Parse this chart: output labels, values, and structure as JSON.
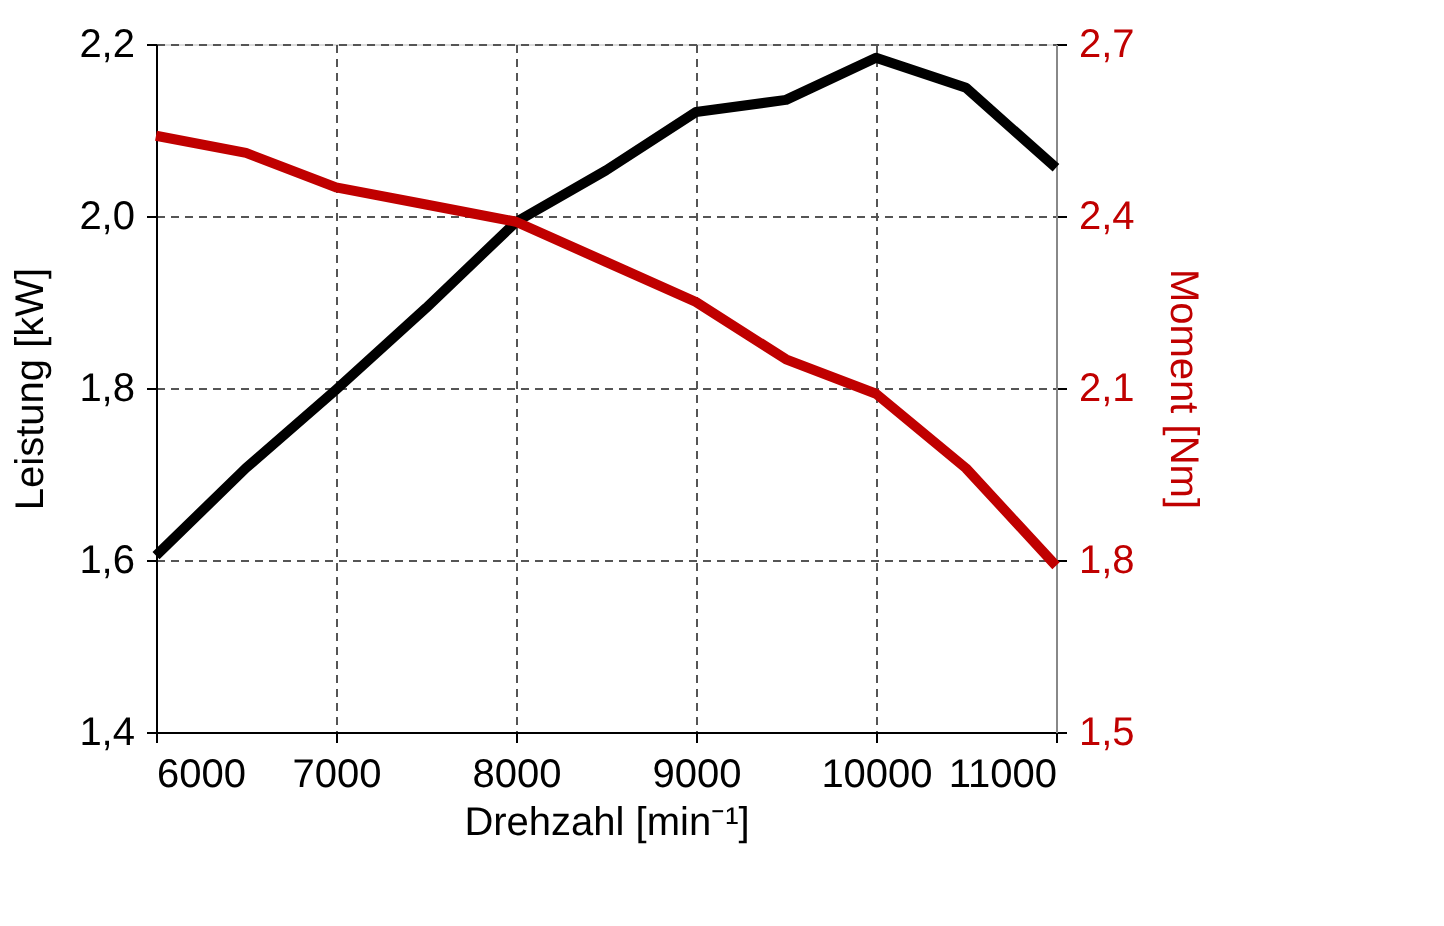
{
  "chart_data": {
    "type": "line",
    "xlabel": "Drehzahl [min⁻¹]",
    "ylabel": "Leistung [kW]",
    "y2label": "Moment [Nm]",
    "x": [
      6000,
      6500,
      7000,
      7500,
      8000,
      8500,
      9000,
      9500,
      10000,
      10500,
      11000
    ],
    "series": [
      {
        "color": "#000000",
        "values": [
          1.605,
          1.707,
          1.798,
          1.893,
          1.993,
          2.053,
          2.121,
          2.135,
          2.184,
          2.149,
          2.056
        ]
      },
      {
        "color": "#c00000",
        "axis": "y2",
        "values": [
          2.54,
          2.51,
          2.45,
          2.42,
          2.39,
          2.32,
          2.25,
          2.15,
          2.09,
          1.96,
          1.79
        ]
      }
    ],
    "xlim": [
      6000,
      11000
    ],
    "xticks": [
      6000,
      7000,
      8000,
      9000,
      10000,
      11000
    ],
    "ylim": [
      1.4,
      2.2
    ],
    "yticks": [
      {
        "value": 1.4,
        "label": "1,4"
      },
      {
        "value": 1.6,
        "label": "1,6"
      },
      {
        "value": 1.8,
        "label": "1,8"
      },
      {
        "value": 2.0,
        "label": "2,0"
      },
      {
        "value": 2.2,
        "label": "2,2"
      }
    ],
    "y2lim": [
      1.5,
      2.7
    ],
    "y2ticks": [
      {
        "value": 1.5,
        "label": "1,5"
      },
      {
        "value": 1.8,
        "label": "1,8"
      },
      {
        "value": 2.1,
        "label": "2,1"
      },
      {
        "value": 2.4,
        "label": "2,4"
      },
      {
        "value": 2.7,
        "label": "2,7"
      }
    ],
    "grid": true,
    "legend": false,
    "marker": "none",
    "line_style": "solid"
  }
}
